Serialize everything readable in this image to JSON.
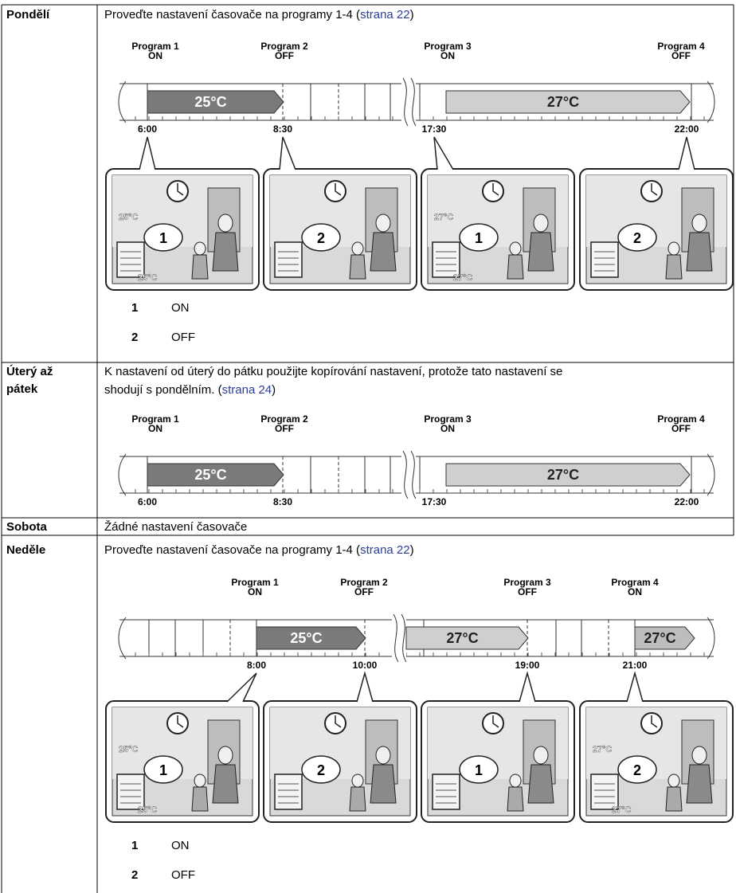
{
  "rows": [
    {
      "day": [
        "Pondělí"
      ],
      "lines": [
        [
          {
            "text": "Proveďte nastavení časovače na programy 1-4 ("
          },
          {
            "link": "strana 22"
          },
          {
            "text": ")"
          }
        ]
      ],
      "timeline": {
        "programs": [
          {
            "label": "Program 1",
            "state": "ON"
          },
          {
            "label": "Program 2",
            "state": "OFF"
          },
          {
            "label": "Program 3",
            "state": "ON"
          },
          {
            "label": "Program 4",
            "state": "OFF"
          }
        ],
        "times": [
          "6:00",
          "8:30",
          "17:30",
          "22:00"
        ],
        "bars": [
          "25°C",
          "27°C"
        ]
      },
      "panels": [
        {
          "bubble": "1",
          "temps": [
            "25°C",
            "25°C"
          ]
        },
        {
          "bubble": "2"
        },
        {
          "bubble": "1",
          "temps": [
            "27°C",
            "27°C"
          ]
        },
        {
          "bubble": "2"
        }
      ],
      "legend": [
        {
          "num": "1",
          "label": "ON"
        },
        {
          "num": "2",
          "label": "OFF"
        }
      ]
    },
    {
      "day": [
        "Úterý až",
        "pátek"
      ],
      "lines": [
        [
          {
            "text": "K nastavení od úterý do pátku použijte kopírování nastavení, protože tato nastavení se"
          }
        ],
        [
          {
            "text": "shodují s pondělním. ("
          },
          {
            "link": "strana 24"
          },
          {
            "text": ")"
          }
        ]
      ],
      "timeline": {
        "programs": [
          {
            "label": "Program 1",
            "state": "ON"
          },
          {
            "label": "Program 2",
            "state": "OFF"
          },
          {
            "label": "Program 3",
            "state": "ON"
          },
          {
            "label": "Program 4",
            "state": "OFF"
          }
        ],
        "times": [
          "6:00",
          "8:30",
          "17:30",
          "22:00"
        ],
        "bars": [
          "25°C",
          "27°C"
        ]
      }
    },
    {
      "day": [
        "Sobota"
      ],
      "lines": [
        [
          {
            "text": "Žádné nastavení časovače"
          }
        ]
      ]
    },
    {
      "day": [
        "Neděle"
      ],
      "lines": [
        [
          {
            "text": "Proveďte nastavení časovače na programy 1-4 ("
          },
          {
            "link": "strana 22"
          },
          {
            "text": ")"
          }
        ]
      ],
      "timeline": {
        "programs": [
          {
            "label": "Program 1",
            "state": "ON"
          },
          {
            "label": "Program 2",
            "state": "OFF"
          },
          {
            "label": "Program 3",
            "state": "OFF"
          },
          {
            "label": "Program 4",
            "state": "ON"
          }
        ],
        "times": [
          "8:00",
          "10:00",
          "19:00",
          "21:00"
        ],
        "bars": [
          "25°C",
          "27°C",
          "27°C"
        ]
      },
      "panels": [
        {
          "bubble": "1",
          "temps": [
            "25°C",
            "25°C"
          ]
        },
        {
          "bubble": "2"
        },
        {
          "bubble": "1"
        },
        {
          "bubble": "2",
          "temps": [
            "27°C",
            "27°C"
          ]
        }
      ],
      "legend": [
        {
          "num": "1",
          "label": "ON"
        },
        {
          "num": "2",
          "label": "OFF"
        }
      ]
    }
  ]
}
